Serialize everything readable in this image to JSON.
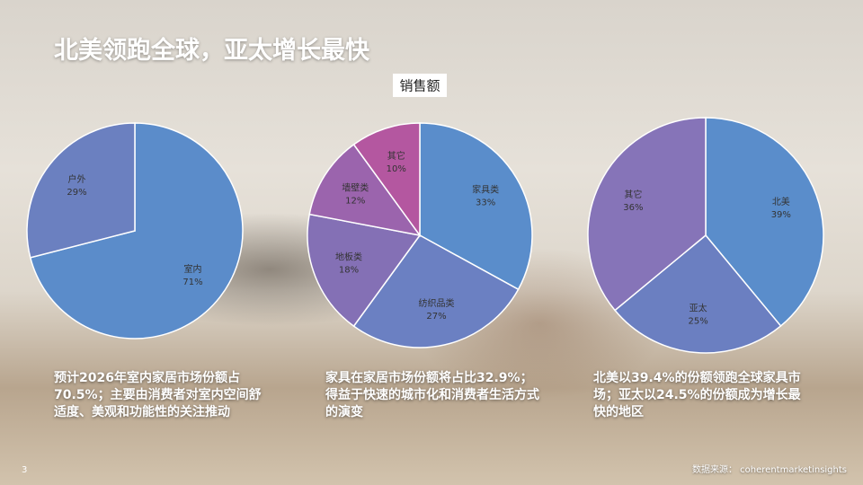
{
  "slide_title": "北美领跑全球，亚太增长最快",
  "chart_data": [
    {
      "type": "pie",
      "categories": [
        "室内",
        "户外"
      ],
      "values": [
        71,
        29
      ],
      "value_labels": [
        "71%",
        "29%"
      ],
      "colors": [
        "#5b8cca",
        "#6b80c0"
      ]
    },
    {
      "type": "pie",
      "title": "销售额",
      "categories": [
        "家具类",
        "纺织品类",
        "地板类",
        "墙壁类",
        "其它"
      ],
      "values": [
        33,
        27,
        18,
        12,
        10
      ],
      "value_labels": [
        "33%",
        "27%",
        "18%",
        "12%",
        "10%"
      ],
      "colors": [
        "#5a8dcb",
        "#6b80c2",
        "#8470b5",
        "#9b64ad",
        "#b457a0"
      ]
    },
    {
      "type": "pie",
      "categories": [
        "北美",
        "亚太",
        "其它"
      ],
      "values": [
        39,
        25,
        36
      ],
      "value_labels": [
        "39%",
        "25%",
        "36%"
      ],
      "colors": [
        "#5a8dcb",
        "#6b7fc1",
        "#8674b8"
      ]
    }
  ],
  "captions": [
    "预计2026年室内家居市场份额占70.5%；主要由消费者对室内空间舒适度、美观和功能性的关注推动",
    "家具在家居市场份额将占比32.9%；得益于快速的城市化和消费者生活方式的演变",
    "北美以39.4%的份额领跑全球家具市场；亚太以24.5%的份额成为增长最快的地区"
  ],
  "page_number": "3",
  "source": "数据来源： coherentmarketinsights"
}
